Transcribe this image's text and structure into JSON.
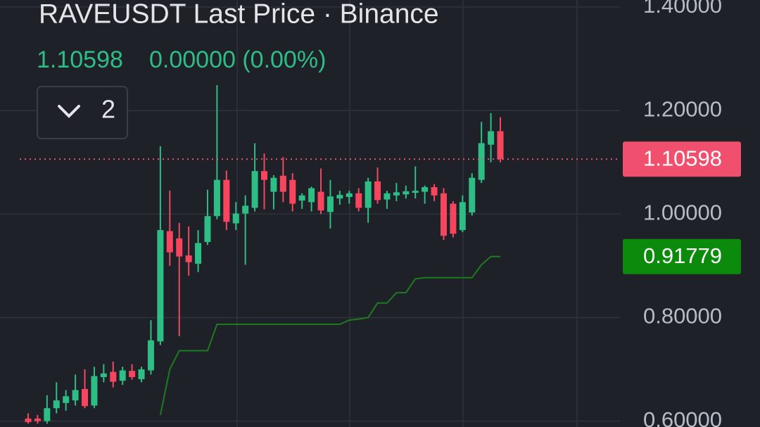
{
  "chart_data": {
    "type": "candlestick",
    "title": "RAVEUSDT Last Price · Binance",
    "price_text": "1.10598",
    "change_text": "0.00000 (0.00%)",
    "indicator_count": "2",
    "up_color": "#2ebd85",
    "down_color": "#f6465d",
    "grid": true,
    "categories": [
      null,
      null,
      null,
      null,
      null,
      null,
      null,
      null,
      null,
      null,
      null,
      null,
      null,
      null,
      null,
      null,
      null,
      null,
      null,
      null,
      null,
      null,
      null,
      null,
      null,
      null,
      null,
      null,
      null,
      null,
      null,
      null,
      null,
      null,
      null,
      null,
      null,
      null,
      null,
      null,
      null,
      null,
      null,
      null,
      null,
      null,
      null,
      null,
      null,
      null,
      null
    ],
    "open": [
      0.605,
      0.605,
      0.6,
      0.625,
      0.635,
      0.64,
      0.662,
      0.63,
      0.685,
      0.695,
      0.678,
      0.697,
      0.681,
      0.698,
      0.754,
      0.967,
      0.953,
      0.92,
      0.904,
      0.946,
      0.996,
      1.066,
      0.982,
      1.001,
      1.012,
      1.083,
      1.043,
      1.074,
      1.066,
      1.026,
      1.023,
      1.043,
      1.004,
      1.03,
      1.033,
      1.04,
      1.012,
      1.063,
      1.028,
      1.036,
      1.038,
      1.041,
      1.043,
      1.052,
      1.04,
      1.02,
      0.969,
      1.003,
      1.066,
      1.134,
      1.16
    ],
    "high": [
      0.615,
      0.612,
      0.65,
      0.675,
      0.66,
      0.69,
      0.7,
      0.705,
      0.71,
      0.715,
      0.705,
      0.71,
      0.705,
      0.795,
      1.131,
      1.045,
      0.983,
      0.976,
      0.969,
      1.047,
      1.249,
      1.084,
      1.023,
      1.036,
      1.137,
      1.117,
      1.075,
      1.11,
      1.079,
      1.04,
      1.053,
      1.088,
      1.066,
      1.045,
      1.045,
      1.05,
      1.07,
      1.09,
      1.045,
      1.06,
      1.055,
      1.092,
      1.055,
      1.058,
      1.05,
      1.025,
      1.036,
      1.079,
      1.178,
      1.195,
      1.187
    ],
    "low": [
      0.595,
      0.595,
      0.595,
      0.615,
      0.62,
      0.63,
      0.625,
      0.625,
      0.675,
      0.665,
      0.67,
      0.68,
      0.675,
      0.69,
      0.747,
      0.9,
      0.764,
      0.881,
      0.888,
      0.94,
      0.99,
      0.969,
      0.969,
      0.902,
      1.005,
      1.009,
      1.009,
      1.023,
      1.005,
      1.01,
      1.005,
      1.0,
      0.972,
      1.018,
      1.02,
      1.005,
      0.983,
      1.02,
      1.01,
      1.025,
      1.03,
      1.03,
      1.02,
      1.025,
      0.95,
      0.955,
      0.965,
      0.997,
      1.06,
      1.1,
      1.1
    ],
    "close": [
      0.598,
      0.6,
      0.625,
      0.64,
      0.648,
      0.66,
      0.629,
      0.687,
      0.692,
      0.676,
      0.698,
      0.685,
      0.7,
      0.756,
      0.969,
      0.926,
      0.918,
      0.907,
      0.944,
      0.996,
      1.066,
      0.985,
      1.001,
      1.016,
      1.083,
      1.066,
      1.07,
      1.043,
      1.02,
      1.036,
      1.05,
      1.007,
      1.034,
      1.037,
      1.04,
      1.012,
      1.063,
      1.027,
      1.04,
      1.042,
      1.044,
      1.045,
      1.052,
      1.036,
      0.958,
      0.962,
      1.023,
      1.07,
      1.137,
      1.16,
      1.10598
    ],
    "overlay": {
      "type": "line",
      "color": "#1e7a1e",
      "values": [
        null,
        null,
        null,
        null,
        null,
        null,
        null,
        null,
        null,
        null,
        null,
        null,
        null,
        null,
        0.612,
        0.7,
        0.736,
        0.736,
        0.736,
        0.736,
        0.787,
        0.787,
        0.787,
        0.787,
        0.787,
        0.787,
        0.787,
        0.787,
        0.787,
        0.787,
        0.787,
        0.787,
        0.787,
        0.787,
        0.795,
        0.797,
        0.8,
        0.828,
        0.828,
        0.848,
        0.848,
        0.875,
        0.877,
        0.877,
        0.877,
        0.877,
        0.877,
        0.877,
        0.902,
        0.918,
        0.91779
      ]
    },
    "last_price": 1.10598,
    "last_price_color": "#f0506e",
    "overlay_last": 0.91779,
    "overlay_label_color": "#0b8a0b",
    "ylim": [
      0.5886,
      1.4135
    ],
    "yticks": [
      {
        "value": 0.6,
        "label": "0.60000"
      },
      {
        "value": 0.8,
        "label": "0.80000"
      },
      {
        "value": 1.0,
        "label": "1.00000"
      },
      {
        "value": 1.2,
        "label": "1.20000"
      },
      {
        "value": 1.4,
        "label": "1.40000"
      }
    ]
  }
}
